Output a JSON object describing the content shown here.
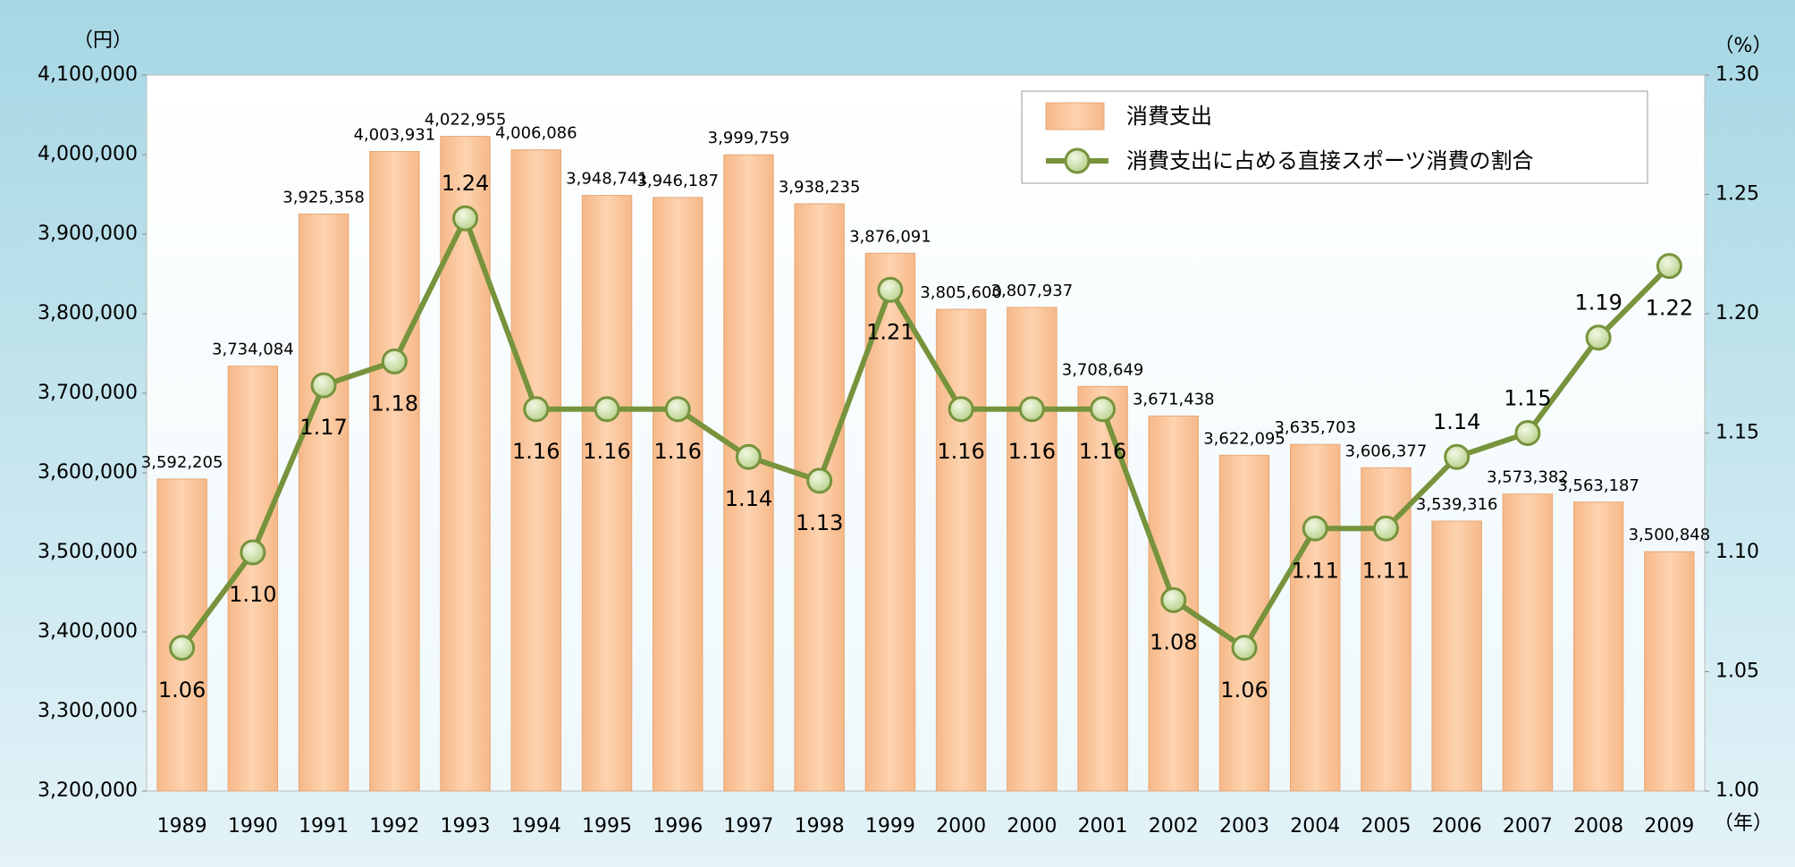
{
  "chart_data": {
    "type": "bar",
    "y_unit": "（円）",
    "y2_unit": "（%）",
    "x_unit": "（年）",
    "categories": [
      "1989",
      "1990",
      "1991",
      "1992",
      "1993",
      "1994",
      "1995",
      "1996",
      "1997",
      "1998",
      "1999",
      "2000",
      "2000",
      "2001",
      "2002",
      "2003",
      "2004",
      "2005",
      "2006",
      "2007",
      "2008",
      "2009"
    ],
    "series": [
      {
        "name": "消費支出",
        "type": "bar",
        "color": "#fcc89c",
        "values": [
          3592205,
          3734084,
          3925358,
          4003931,
          4022955,
          4006086,
          3948741,
          3946187,
          3999759,
          3938235,
          3876091,
          3805600,
          3807937,
          3708649,
          3671438,
          3622095,
          3635703,
          3606377,
          3539316,
          3573382,
          3563187,
          3500848
        ],
        "value_labels": [
          "3,592,205",
          "3,734,084",
          "3,925,358",
          "4,003,931",
          "4,022,955",
          "4,006,086",
          "3,948,741",
          "3,946,187",
          "3,999,759",
          "3,938,235",
          "3,876,091",
          "3,805,600",
          "3,807,937",
          "3,708,649",
          "3,671,438",
          "3,622,095",
          "3,635,703",
          "3,606,377",
          "3,539,316",
          "3,573,382",
          "3,563,187",
          "3,500,848"
        ]
      },
      {
        "name": "消費支出に占める直接スポーツ消費の割合",
        "type": "line",
        "axis": "y2",
        "color": "#77933c",
        "values": [
          1.06,
          1.1,
          1.17,
          1.18,
          1.24,
          1.16,
          1.16,
          1.16,
          1.14,
          1.13,
          1.21,
          1.16,
          1.16,
          1.16,
          1.08,
          1.06,
          1.11,
          1.11,
          1.14,
          1.15,
          1.19,
          1.22
        ],
        "value_labels": [
          "1.06",
          "1.10",
          "1.17",
          "1.18",
          "1.24",
          "1.16",
          "1.16",
          "1.16",
          "1.14",
          "1.13",
          "1.21",
          "1.16",
          "1.16",
          "1.16",
          "1.08",
          "1.06",
          "1.11",
          "1.11",
          "1.14",
          "1.15",
          "1.19",
          "1.22"
        ]
      }
    ],
    "ylim": [
      3200000,
      4100000
    ],
    "yticks": [
      {
        "value": 3200000,
        "label": "3,200,000"
      },
      {
        "value": 3300000,
        "label": "3,300,000"
      },
      {
        "value": 3400000,
        "label": "3,400,000"
      },
      {
        "value": 3500000,
        "label": "3,500,000"
      },
      {
        "value": 3600000,
        "label": "3,600,000"
      },
      {
        "value": 3700000,
        "label": "3,700,000"
      },
      {
        "value": 3800000,
        "label": "3,800,000"
      },
      {
        "value": 3900000,
        "label": "3,900,000"
      },
      {
        "value": 4000000,
        "label": "4,000,000"
      },
      {
        "value": 4100000,
        "label": "4,100,000"
      }
    ],
    "y2lim": [
      1.0,
      1.3
    ],
    "y2ticks": [
      {
        "value": 1.0,
        "label": "1.00"
      },
      1.05,
      {
        "value": 1.1,
        "label": "1.10"
      },
      1.15,
      {
        "value": 1.2,
        "label": "1.20"
      },
      1.25,
      {
        "value": 1.3,
        "label": "1.30"
      }
    ],
    "legend": "upper right"
  }
}
